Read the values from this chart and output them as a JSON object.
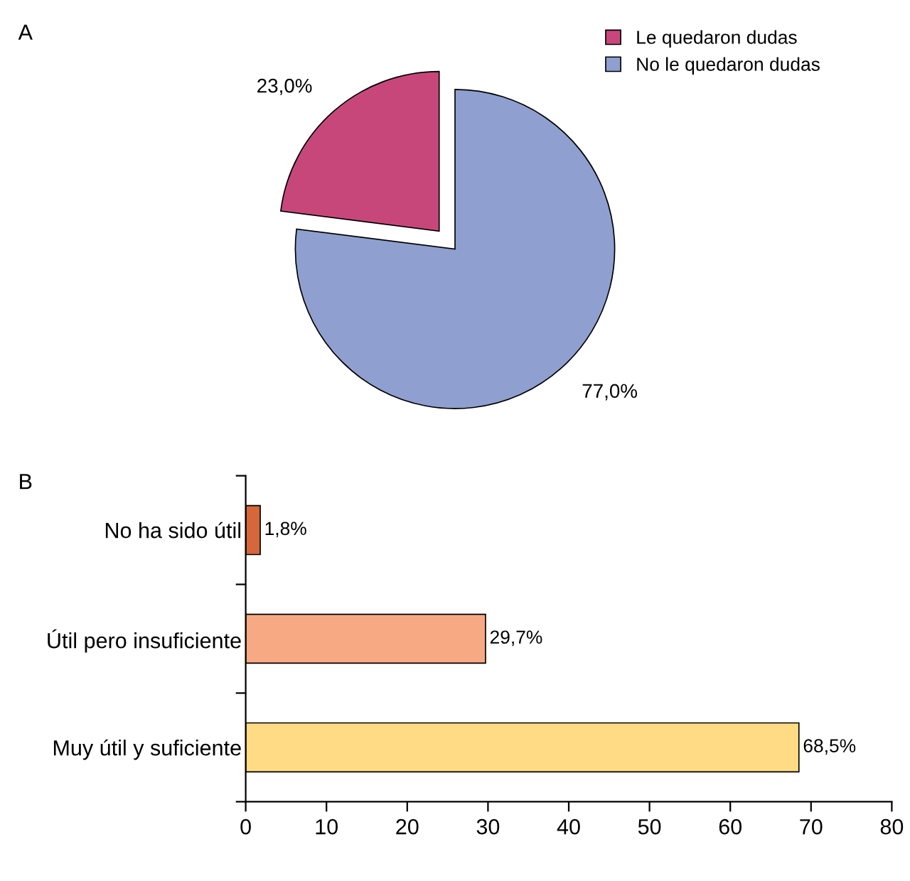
{
  "chart_data": [
    {
      "type": "pie",
      "title": "A",
      "categories": [
        "Le quedaron dudas",
        "No le quedaron dudas"
      ],
      "values": [
        23.0,
        77.0
      ],
      "colors": [
        "#c8477b",
        "#8f9fcf"
      ],
      "value_labels": [
        "23,0%",
        "77,0%"
      ],
      "legend": "top right"
    },
    {
      "type": "bar",
      "title": "B",
      "orientation": "horizontal",
      "categories": [
        "No ha sido útil",
        "Útil pero insuficiente",
        "Muy útil y suficiente"
      ],
      "values": [
        1.8,
        29.7,
        68.5
      ],
      "colors": [
        "#d4683b",
        "#f6a983",
        "#fedb84"
      ],
      "value_labels": [
        "1,8%",
        "29,7%",
        "68,5%"
      ],
      "xlim": [
        0,
        80
      ],
      "xticks": [
        0,
        10,
        20,
        30,
        40,
        50,
        60,
        70,
        80
      ],
      "grid": false
    }
  ]
}
